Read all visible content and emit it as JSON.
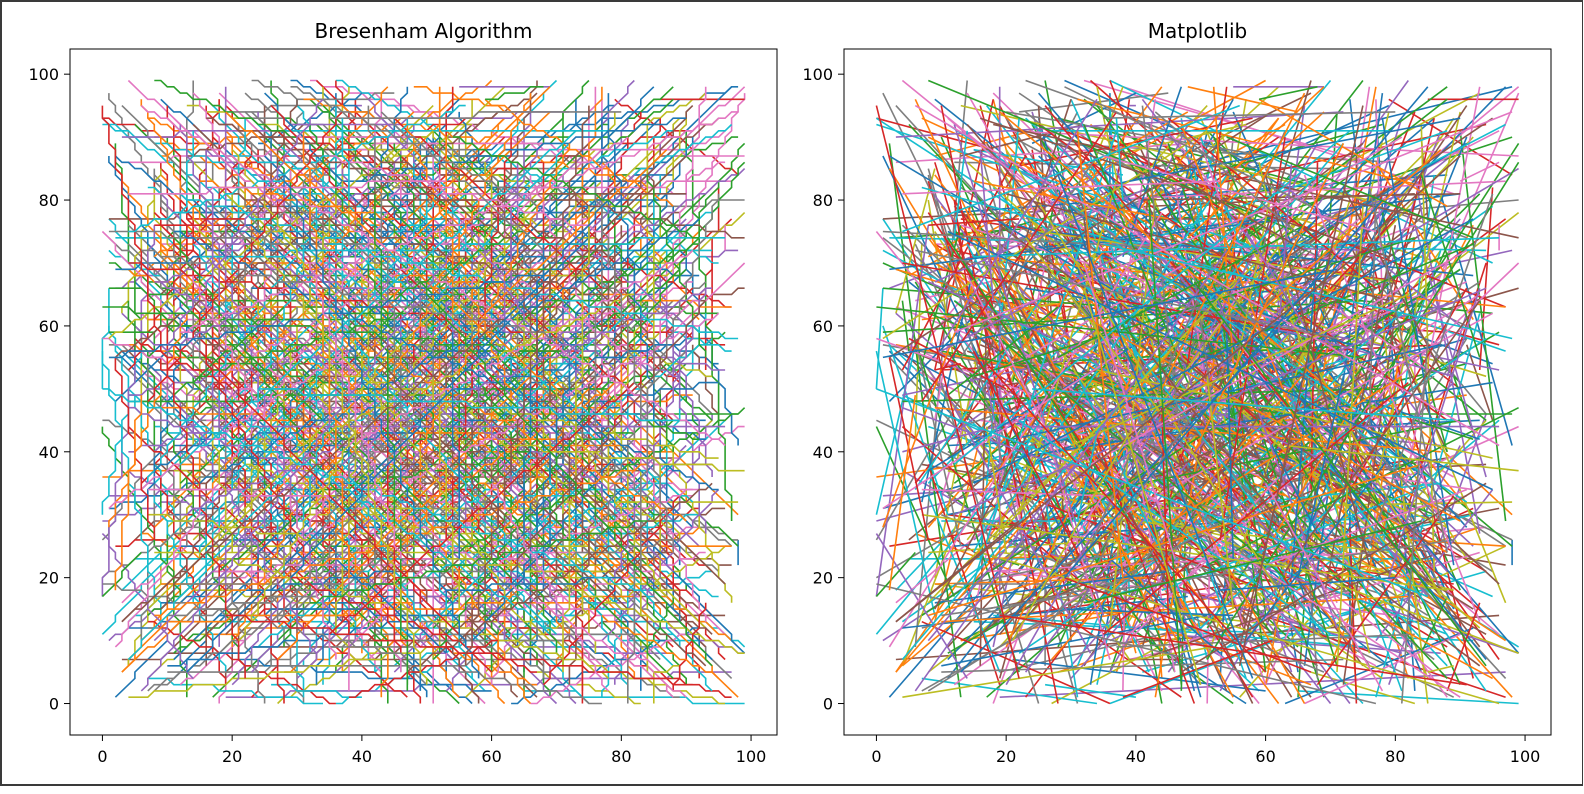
{
  "figure": {
    "background": "#ffffff"
  },
  "chart_data": [
    {
      "type": "line",
      "title": "Bresenham Algorithm",
      "xlabel": "",
      "ylabel": "",
      "xlim": [
        -5,
        104
      ],
      "ylim": [
        -5,
        104
      ],
      "xticks": [
        0,
        20,
        40,
        60,
        80,
        100
      ],
      "yticks": [
        0,
        20,
        40,
        60,
        80,
        100
      ],
      "xtick_labels": [
        "0",
        "20",
        "40",
        "60",
        "80",
        "100"
      ],
      "ytick_labels": [
        "0",
        "20",
        "40",
        "60",
        "80",
        "100"
      ],
      "rendering": "rasterized-staircase",
      "grid": false,
      "legend": "none",
      "segment_count": 1000,
      "coordinate_range": [
        0,
        99
      ],
      "colors": [
        "#1f77b4",
        "#ff7f0e",
        "#2ca02c",
        "#d62728",
        "#9467bd",
        "#8c564b",
        "#e377c2",
        "#7f7f7f",
        "#bcbd22",
        "#17becf"
      ]
    },
    {
      "type": "line",
      "title": "Matplotlib",
      "xlabel": "",
      "ylabel": "",
      "xlim": [
        -5,
        104
      ],
      "ylim": [
        -5,
        104
      ],
      "xticks": [
        0,
        20,
        40,
        60,
        80,
        100
      ],
      "yticks": [
        0,
        20,
        40,
        60,
        80,
        100
      ],
      "xtick_labels": [
        "0",
        "20",
        "40",
        "60",
        "80",
        "100"
      ],
      "ytick_labels": [
        "0",
        "20",
        "40",
        "60",
        "80",
        "100"
      ],
      "rendering": "straight",
      "grid": false,
      "legend": "none",
      "segment_count": 1000,
      "coordinate_range": [
        0,
        99
      ],
      "colors": [
        "#1f77b4",
        "#ff7f0e",
        "#2ca02c",
        "#d62728",
        "#9467bd",
        "#8c564b",
        "#e377c2",
        "#7f7f7f",
        "#bcbd22",
        "#17becf"
      ]
    }
  ]
}
